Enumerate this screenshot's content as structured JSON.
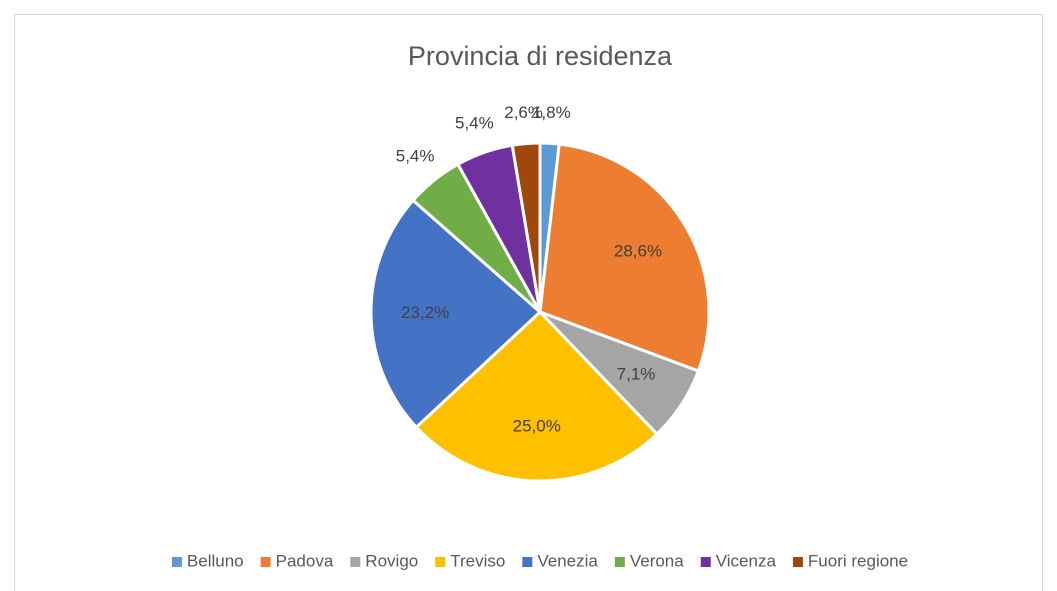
{
  "chart_data": {
    "type": "pie",
    "title": "Provincia di residenza",
    "categories": [
      "Belluno",
      "Padova",
      "Rovigo",
      "Treviso",
      "Venezia",
      "Verona",
      "Vicenza",
      "Fuori regione"
    ],
    "values": [
      1.8,
      28.6,
      7.1,
      25.0,
      23.2,
      5.4,
      5.4,
      2.6
    ],
    "value_labels": [
      "1,8%",
      "28,6%",
      "7,1%",
      "25,0%",
      "23,2%",
      "5,4%",
      "5,4%",
      "2,6%"
    ],
    "colors": [
      "#5b9bd5",
      "#ed7d31",
      "#a5a5a5",
      "#ffc000",
      "#4472c4",
      "#70ad47",
      "#7030a0",
      "#9e480e"
    ],
    "legend": "bottom"
  }
}
